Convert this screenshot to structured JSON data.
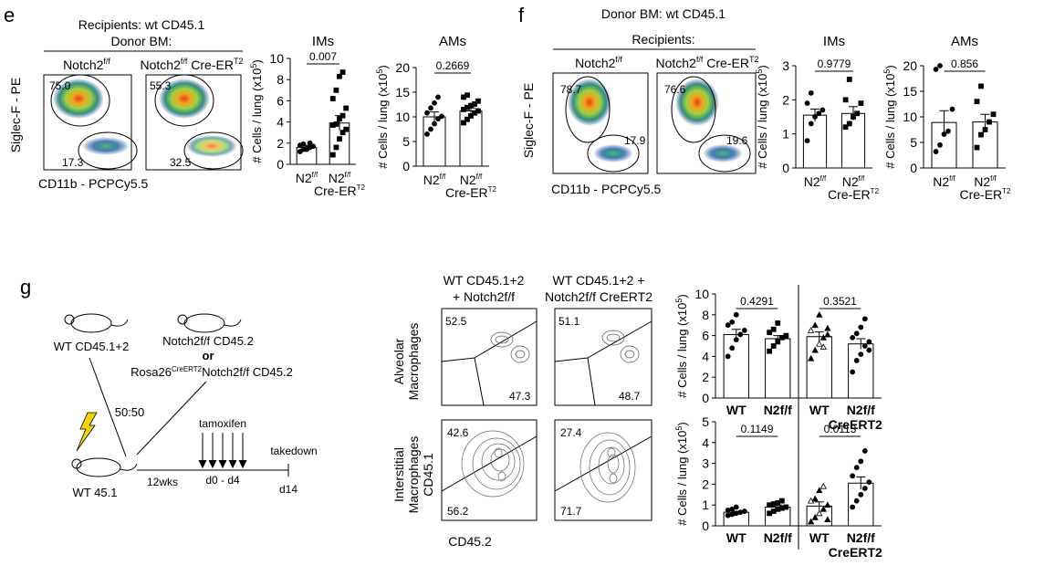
{
  "panels": {
    "e": "e",
    "f": "f",
    "g": "g"
  },
  "panel_e": {
    "header_line1": "Recipients: wt CD45.1",
    "header_line2": "Donor BM:",
    "col1_title": "Notch2",
    "col1_sup": "f/f",
    "col2_title": "Notch2",
    "col2_sup": "f/f",
    "col2_suffix": " Cre-ER",
    "col2_suffix_sup": "T2",
    "y_axis": "Siglec-F - PE",
    "x_axis": "CD11b - PCPCy5.5",
    "plot1_gates": {
      "upper": "75.0",
      "lower": "17.3"
    },
    "plot2_gates": {
      "upper": "55.3",
      "lower": "32.5"
    }
  },
  "panel_f": {
    "header_line1": "Donor BM: wt CD45.1",
    "header_line2": "Recipients:",
    "col1_title": "Notch2",
    "col1_sup": "f/f",
    "col2_title": "Notch2",
    "col2_sup": "f/f",
    "col2_suffix": " Cre-ER",
    "col2_suffix_sup": "T2",
    "y_axis": "Siglec-F - PE",
    "x_axis": "CD11b - PCPCy5.5",
    "plot1_gates": {
      "upper": "78.7",
      "lower": "17.9"
    },
    "plot2_gates": {
      "upper": "76.6",
      "lower": "19.6"
    }
  },
  "panel_g": {
    "mouse1": "WT CD45.1+2",
    "mouse2": "Notch2f/f CD45.2",
    "or": "or",
    "mouse3_pre": "Rosa26",
    "mouse3_sup": "CreERT2",
    "mouse3_post": "Notch2f/f CD45.2",
    "ratio": "50:50",
    "recipient": "WT 45.1",
    "weeks": "12wks",
    "tamoxifen": "tamoxifen",
    "days": "d0 - d4",
    "takedown": "takedown",
    "end_day": "d14",
    "col1_line1": "WT CD45.1+2",
    "col1_line2": "+ Notch2f/f",
    "col2_line1": "WT CD45.1+2 +",
    "col2_line2": "Notch2f/f CreERT2",
    "row1_label_l1": "Alveolar",
    "row1_label_l2": "Macrophages",
    "row2_label_l1": "Interstitial",
    "row2_label_l2": "Macrophages",
    "row2_label_l3": "CD45.1",
    "x_axis": "CD45.2",
    "plot1": {
      "tl": "52.5",
      "br": "47.3"
    },
    "plot2": {
      "tl": "51.1",
      "br": "48.7"
    },
    "plot3": {
      "tl": "42.6",
      "bl": "56.2"
    },
    "plot4": {
      "tl": "27.4",
      "bl": "71.7"
    }
  },
  "bar_y_label": "# Cells / lung (x10",
  "bar_y_sup": "5",
  "bar_y_close": ")",
  "chart_data": [
    {
      "id": "e_IMs",
      "type": "bar",
      "title": "IMs",
      "categories": [
        "N2 f/f",
        "N2 f/f Cre-ER T2"
      ],
      "values": [
        1.6,
        3.9
      ],
      "errors": [
        0.2,
        0.7
      ],
      "points": [
        [
          1.2,
          1.4,
          1.5,
          1.6,
          1.7,
          1.8,
          1.9,
          1.4,
          2.0
        ],
        [
          0.9,
          1.6,
          2.4,
          3.0,
          3.3,
          3.7,
          3.8,
          4.3,
          4.6,
          5.3,
          6.2,
          7.0,
          8.3,
          8.7
        ]
      ],
      "ylim": [
        0,
        10
      ],
      "yticks": [
        0,
        2,
        4,
        6,
        8,
        10
      ],
      "pvalue": "0.007"
    },
    {
      "id": "e_AMs",
      "type": "bar",
      "title": "AMs",
      "categories": [
        "N2 f/f",
        "N2 f/f Cre-ER T2"
      ],
      "values": [
        10.0,
        11.2
      ],
      "errors": [
        1.0,
        0.6
      ],
      "points": [
        [
          6.5,
          7.5,
          8.6,
          9.6,
          10.1,
          10.8,
          11.8,
          12.8,
          14.0
        ],
        [
          8.8,
          9.5,
          10.2,
          10.8,
          11.2,
          11.5,
          11.9,
          12.3,
          12.6,
          13.2,
          14.0,
          14.4
        ]
      ],
      "ylim": [
        0,
        20
      ],
      "yticks": [
        0,
        5,
        10,
        15,
        20
      ],
      "pvalue": "0.2669"
    },
    {
      "id": "f_IMs",
      "type": "bar",
      "title": "IMs",
      "categories": [
        "N2 f/f",
        "N2 f/f Cre-ER T2"
      ],
      "values": [
        1.55,
        1.6
      ],
      "errors": [
        0.18,
        0.2
      ],
      "points": [
        [
          0.8,
          1.3,
          1.5,
          1.6,
          1.7,
          1.9,
          2.2
        ],
        [
          1.2,
          1.3,
          1.5,
          1.6,
          1.9,
          2.0,
          2.6
        ]
      ],
      "ylim": [
        0,
        3
      ],
      "yticks": [
        0,
        1,
        2,
        3
      ],
      "pvalue": "0.9779"
    },
    {
      "id": "f_AMs",
      "type": "bar",
      "title": "AMs",
      "categories": [
        "N2 f/f",
        "N2 f/f Cre-ER T2"
      ],
      "values": [
        8.9,
        9.0
      ],
      "errors": [
        2.3,
        1.5
      ],
      "points": [
        [
          3.2,
          4.5,
          6.6,
          7.2,
          11.5,
          19.3,
          20.0
        ],
        [
          4.0,
          6.5,
          7.5,
          9.0,
          10.5,
          13.0,
          16.0
        ]
      ],
      "ylim": [
        0,
        20
      ],
      "yticks": [
        0,
        5,
        10,
        15,
        20
      ],
      "pvalue": "0.856"
    },
    {
      "id": "g_AMs",
      "type": "bar",
      "title": "",
      "categories": [
        "WT",
        "N2f/f",
        "WT",
        "N2f/f"
      ],
      "values": [
        6.1,
        5.7,
        5.9,
        5.2
      ],
      "errors": [
        0.5,
        0.3,
        0.45,
        0.5
      ],
      "points": [
        [
          4.0,
          4.8,
          5.6,
          6.1,
          6.5,
          7.0,
          7.3,
          8.0
        ],
        [
          4.5,
          5.0,
          5.4,
          5.8,
          6.0,
          6.3,
          6.6,
          7.2
        ],
        [
          3.8,
          4.6,
          5.2,
          5.8,
          6.1,
          6.5,
          7.0,
          8.0,
          4.9,
          6.7
        ],
        [
          2.5,
          3.6,
          4.2,
          5.0,
          5.4,
          5.8,
          6.2,
          6.8,
          7.6,
          4.6
        ]
      ],
      "ylim": [
        0,
        10
      ],
      "yticks": [
        0,
        2,
        4,
        6,
        8,
        10
      ],
      "pvalues": [
        "0.4291",
        "0.3521"
      ]
    },
    {
      "id": "g_IMs",
      "type": "bar",
      "title": "",
      "categories": [
        "WT",
        "N2f/f",
        "WT",
        "N2f/f"
      ],
      "values": [
        0.65,
        0.9,
        0.95,
        2.05
      ],
      "errors": [
        0.05,
        0.1,
        0.2,
        0.3
      ],
      "points": [
        [
          0.5,
          0.55,
          0.6,
          0.65,
          0.7,
          0.75,
          0.8,
          0.9
        ],
        [
          0.6,
          0.7,
          0.8,
          0.85,
          0.9,
          1.0,
          1.05,
          1.1,
          1.2
        ],
        [
          0.2,
          0.4,
          0.6,
          0.8,
          1.0,
          1.2,
          1.3,
          1.7,
          1.9,
          0.3
        ],
        [
          0.9,
          1.2,
          1.5,
          1.8,
          2.1,
          2.4,
          2.8,
          3.1,
          3.6
        ]
      ],
      "ylim": [
        0,
        5
      ],
      "yticks": [
        0,
        1,
        2,
        3,
        4,
        5
      ],
      "pvalues": [
        "0.1149",
        "0.0113"
      ]
    }
  ],
  "g_bottom_labels": {
    "creert2": "CreERT2"
  }
}
